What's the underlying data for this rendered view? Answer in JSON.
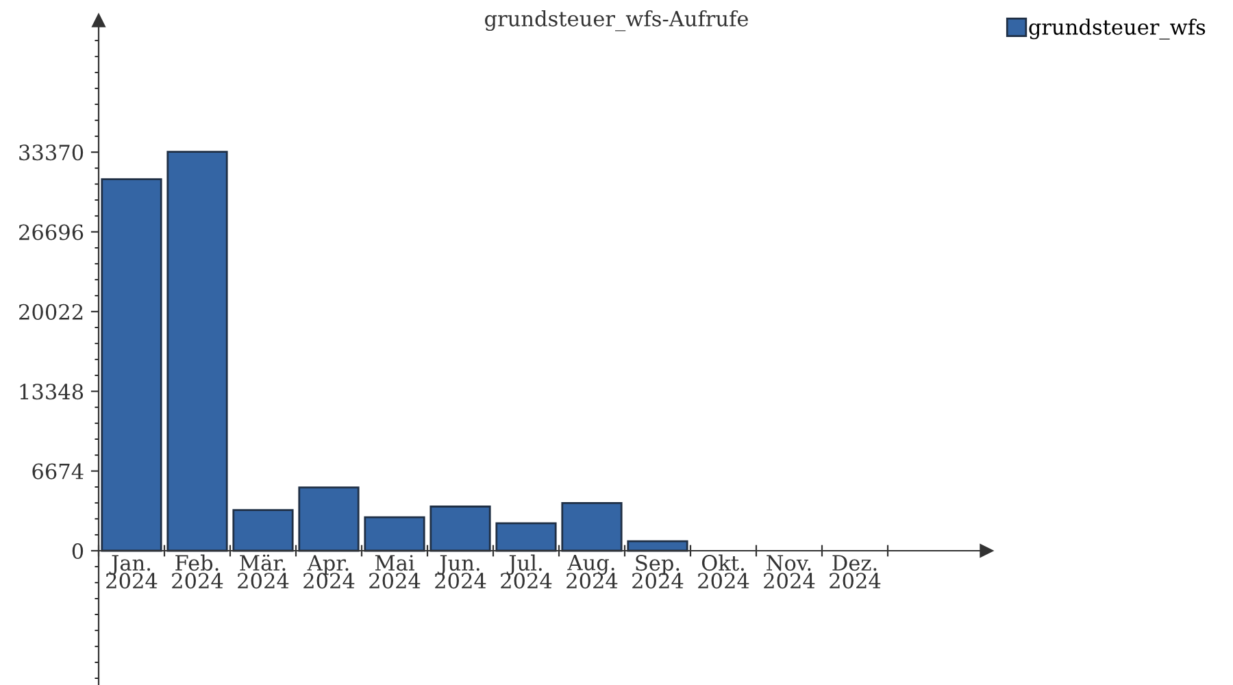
{
  "chart_data": {
    "type": "bar",
    "title": "grundsteuer_wfs-Aufrufe",
    "categories": [
      "Jan.\n2024",
      "Feb.\n2024",
      "Mär.\n2024",
      "Apr.\n2024",
      "Mai\n2024",
      "Jun.\n2024",
      "Jul.\n2024",
      "Aug.\n2024",
      "Sep.\n2024",
      "Okt.\n2024",
      "Nov.\n2024",
      "Dez.\n2024"
    ],
    "series": [
      {
        "name": "grundsteuer_wfs",
        "color": "#3465a4",
        "values": [
          31100,
          33400,
          3400,
          5300,
          2800,
          3700,
          2300,
          4000,
          800,
          null,
          null,
          null
        ]
      }
    ],
    "ylim": [
      -11240,
      44390
    ],
    "yticks": [
      0,
      6674,
      13348,
      20022,
      26696,
      33370
    ],
    "grid": false,
    "legend": "top right"
  }
}
